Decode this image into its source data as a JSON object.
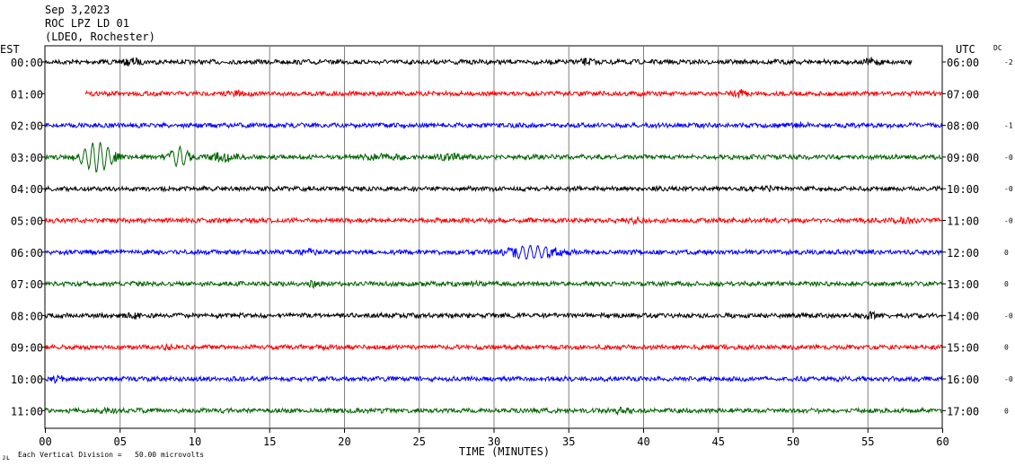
{
  "header": {
    "date": "Sep 3,2023",
    "station": "ROC LPZ LD 01",
    "network": "(LDEO, Rochester)"
  },
  "chart_data": {
    "type": "line",
    "title": "Sep 3,2023 ROC LPZ LD 01 (LDEO, Rochester)",
    "xlabel": "TIME (MINUTES)",
    "xlim": [
      0,
      60
    ],
    "xticks": [
      "00",
      "05",
      "10",
      "15",
      "20",
      "25",
      "30",
      "35",
      "40",
      "45",
      "50",
      "55",
      "60"
    ],
    "left_axis_label": "EST",
    "right_axis_label": "UTC",
    "dc_label": "DC",
    "grid": true,
    "scale_note": "Each Vertical Division =   50.00 microvolts",
    "rows": [
      {
        "est": "00:00",
        "utc": "06:00",
        "dc": "-2",
        "color": "#000000",
        "start": 0,
        "end": 58,
        "bursts": [
          [
            5.8,
            0.5,
            2.2
          ],
          [
            36.2,
            0.6,
            2.0
          ],
          [
            55.3,
            0.5,
            2.2
          ]
        ]
      },
      {
        "est": "01:00",
        "utc": "07:00",
        "dc": "",
        "color": "#ff0000",
        "start": 2.7,
        "end": 60,
        "bursts": [
          [
            12.8,
            0.7,
            1.8
          ],
          [
            46.5,
            0.5,
            2.0
          ]
        ]
      },
      {
        "est": "02:00",
        "utc": "08:00",
        "dc": "-1",
        "color": "#0000ff",
        "start": 0,
        "end": 60,
        "bursts": [
          [
            50.5,
            0.5,
            2.0
          ]
        ]
      },
      {
        "est": "03:00",
        "utc": "09:00",
        "dc": "-0",
        "color": "#006400",
        "start": 0,
        "end": 60,
        "bursts": [
          [
            3.5,
            1.0,
            9.0
          ],
          [
            9.0,
            0.6,
            6.0
          ],
          [
            12.0,
            0.8,
            3.0
          ],
          [
            22.5,
            1.5,
            1.8
          ],
          [
            27.0,
            1.0,
            1.8
          ]
        ]
      },
      {
        "est": "04:00",
        "utc": "10:00",
        "dc": "-0",
        "color": "#000000",
        "start": 0,
        "end": 60,
        "bursts": [
          [
            48.0,
            0.7,
            2.0
          ]
        ]
      },
      {
        "est": "05:00",
        "utc": "11:00",
        "dc": "-0",
        "color": "#ff0000",
        "start": 0,
        "end": 60,
        "bursts": [
          [
            39.5,
            0.5,
            1.8
          ],
          [
            57.5,
            0.6,
            2.0
          ]
        ]
      },
      {
        "est": "06:00",
        "utc": "12:00",
        "dc": "0",
        "color": "#0000ff",
        "start": 0,
        "end": 60,
        "bursts": [
          [
            17.6,
            0.5,
            2.0
          ],
          [
            32.5,
            1.8,
            3.8
          ]
        ]
      },
      {
        "est": "07:00",
        "utc": "13:00",
        "dc": "0",
        "color": "#006400",
        "start": 0,
        "end": 60,
        "bursts": [
          [
            18.0,
            0.5,
            1.8
          ],
          [
            28.5,
            0.5,
            1.6
          ]
        ]
      },
      {
        "est": "08:00",
        "utc": "14:00",
        "dc": "-0",
        "color": "#000000",
        "start": 0,
        "end": 60,
        "bursts": [
          [
            6.0,
            0.5,
            1.8
          ],
          [
            55.2,
            0.5,
            2.0
          ]
        ]
      },
      {
        "est": "09:00",
        "utc": "15:00",
        "dc": "0",
        "color": "#ff0000",
        "start": 0,
        "end": 60,
        "bursts": [
          [
            8.2,
            0.4,
            1.6
          ]
        ]
      },
      {
        "est": "10:00",
        "utc": "16:00",
        "dc": "-0",
        "color": "#0000ff",
        "start": 0,
        "end": 60,
        "bursts": [
          [
            0.8,
            0.5,
            1.8
          ]
        ]
      },
      {
        "est": "11:00",
        "utc": "17:00",
        "dc": "0",
        "color": "#006400",
        "start": 0,
        "end": 60,
        "bursts": [
          [
            4.0,
            0.5,
            1.8
          ],
          [
            38.5,
            0.6,
            1.6
          ]
        ]
      }
    ]
  }
}
